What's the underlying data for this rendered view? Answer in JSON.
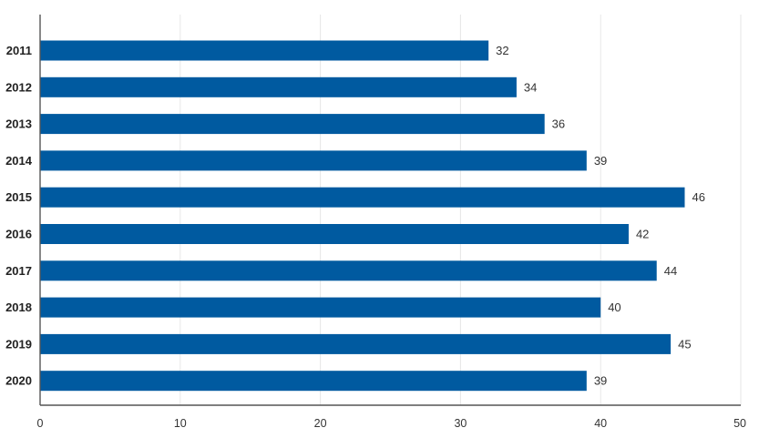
{
  "chart_data": {
    "type": "bar",
    "orientation": "horizontal",
    "title": "",
    "xlabel": "",
    "ylabel": "",
    "categories": [
      "2011",
      "2012",
      "2013",
      "2014",
      "2015",
      "2016",
      "2017",
      "2018",
      "2019",
      "2020"
    ],
    "values": [
      32,
      34,
      36,
      39,
      46,
      42,
      44,
      40,
      45,
      39
    ],
    "xlim": [
      0,
      50
    ],
    "xticks": [
      0,
      10,
      20,
      30,
      40,
      50
    ],
    "grid": "vertical",
    "legend": "none",
    "data_labels": true,
    "bar_color": "#005aa0"
  }
}
